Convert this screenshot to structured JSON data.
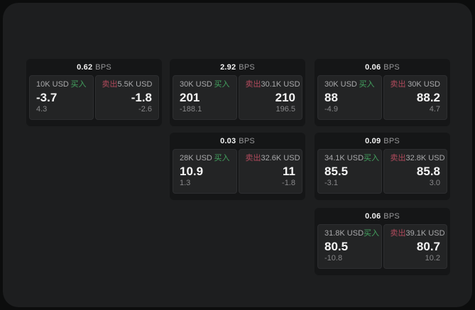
{
  "page": {
    "background": "#0c0d0d",
    "panel_background": "#1d1e1f",
    "card_background": "#151617",
    "tile_background": "#232425"
  },
  "colors": {
    "buy_green": "#43a25f",
    "sell_red": "#b04a5c",
    "value_white": "#f4f4f4",
    "label_gray": "#a9a9ab",
    "delta_gray": "#88888a"
  },
  "labels": {
    "bps": "BPS",
    "buy": "买入",
    "sell": "卖出"
  },
  "cards": [
    {
      "bps": "0.62",
      "buy": {
        "amount": "10K USD",
        "value": "-3.7",
        "delta": "4.3"
      },
      "sell": {
        "amount": "5.5K USD",
        "value": "-1.8",
        "delta": "-2.6"
      }
    },
    {
      "bps": "2.92",
      "buy": {
        "amount": "30K USD",
        "value": "201",
        "delta": "-188.1"
      },
      "sell": {
        "amount": "30.1K USD",
        "value": "210",
        "delta": "196.5"
      }
    },
    {
      "bps": "0.06",
      "buy": {
        "amount": "30K USD",
        "value": "88",
        "delta": "-4.9"
      },
      "sell": {
        "amount": "30K USD",
        "value": "88.2",
        "delta": "4.7"
      }
    },
    {
      "bps": "0.03",
      "buy": {
        "amount": "28K USD",
        "value": "10.9",
        "delta": "1.3"
      },
      "sell": {
        "amount": "32.6K USD",
        "value": "11",
        "delta": "-1.8"
      }
    },
    {
      "bps": "0.09",
      "buy": {
        "amount": "34.1K USD",
        "value": "85.5",
        "delta": "-3.1"
      },
      "sell": {
        "amount": "32.8K USD",
        "value": "85.8",
        "delta": "3.0"
      }
    },
    {
      "bps": "0.06",
      "buy": {
        "amount": "31.8K USD",
        "value": "80.5",
        "delta": "-10.8"
      },
      "sell": {
        "amount": "39.1K USD",
        "value": "80.7",
        "delta": "10.2"
      }
    }
  ]
}
